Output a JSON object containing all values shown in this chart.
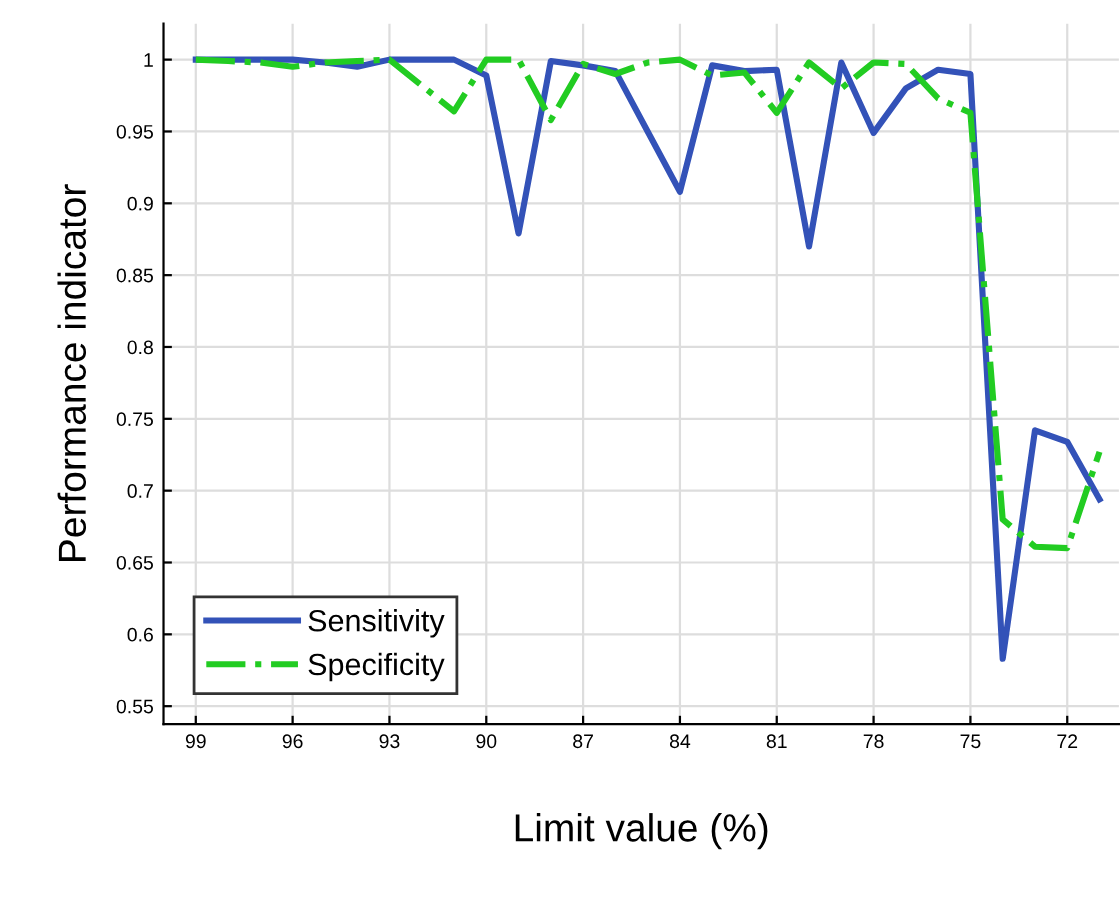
{
  "chart_data": {
    "type": "line",
    "xlabel": "Limit value (%)",
    "ylabel": "Performance indicator",
    "x": [
      99,
      98,
      97,
      96,
      95,
      94,
      93,
      92,
      91,
      90,
      89,
      88,
      87,
      86,
      85,
      84,
      83,
      82,
      81,
      80,
      79,
      78,
      77,
      76,
      75,
      74,
      73,
      72,
      71
    ],
    "series": [
      {
        "name": "Sensitivity",
        "color": "#3352b8",
        "line_style": "solid",
        "values": [
          1.0,
          1.0,
          1.0,
          1.0,
          0.998,
          0.995,
          1.0,
          1.0,
          1.0,
          0.989,
          0.879,
          0.999,
          0.996,
          0.992,
          0.95,
          0.908,
          0.996,
          0.992,
          0.993,
          0.87,
          0.998,
          0.949,
          0.98,
          0.993,
          0.99,
          0.583,
          0.742,
          0.734,
          0.694
        ]
      },
      {
        "name": "Specificity",
        "color": "#22cc22",
        "line_style": "dashdot",
        "values": [
          1.0,
          0.999,
          0.998,
          0.995,
          0.998,
          0.999,
          1.0,
          0.982,
          0.964,
          1.0,
          1.0,
          0.958,
          0.997,
          0.99,
          0.998,
          1.0,
          0.989,
          0.991,
          0.963,
          0.998,
          0.98,
          0.998,
          0.997,
          0.973,
          0.963,
          0.68,
          0.661,
          0.66,
          0.727
        ]
      }
    ],
    "xlim": [
      100,
      70.4
    ],
    "xticks": [
      99,
      96,
      93,
      90,
      87,
      84,
      81,
      78,
      75,
      72
    ],
    "ylim": [
      0.5375,
      1.025
    ],
    "yticks": [
      0.55,
      0.6,
      0.65,
      0.7,
      0.75,
      0.8,
      0.85,
      0.9,
      0.95,
      1
    ],
    "grid": true,
    "legend": "bottom left",
    "marker": "none"
  }
}
